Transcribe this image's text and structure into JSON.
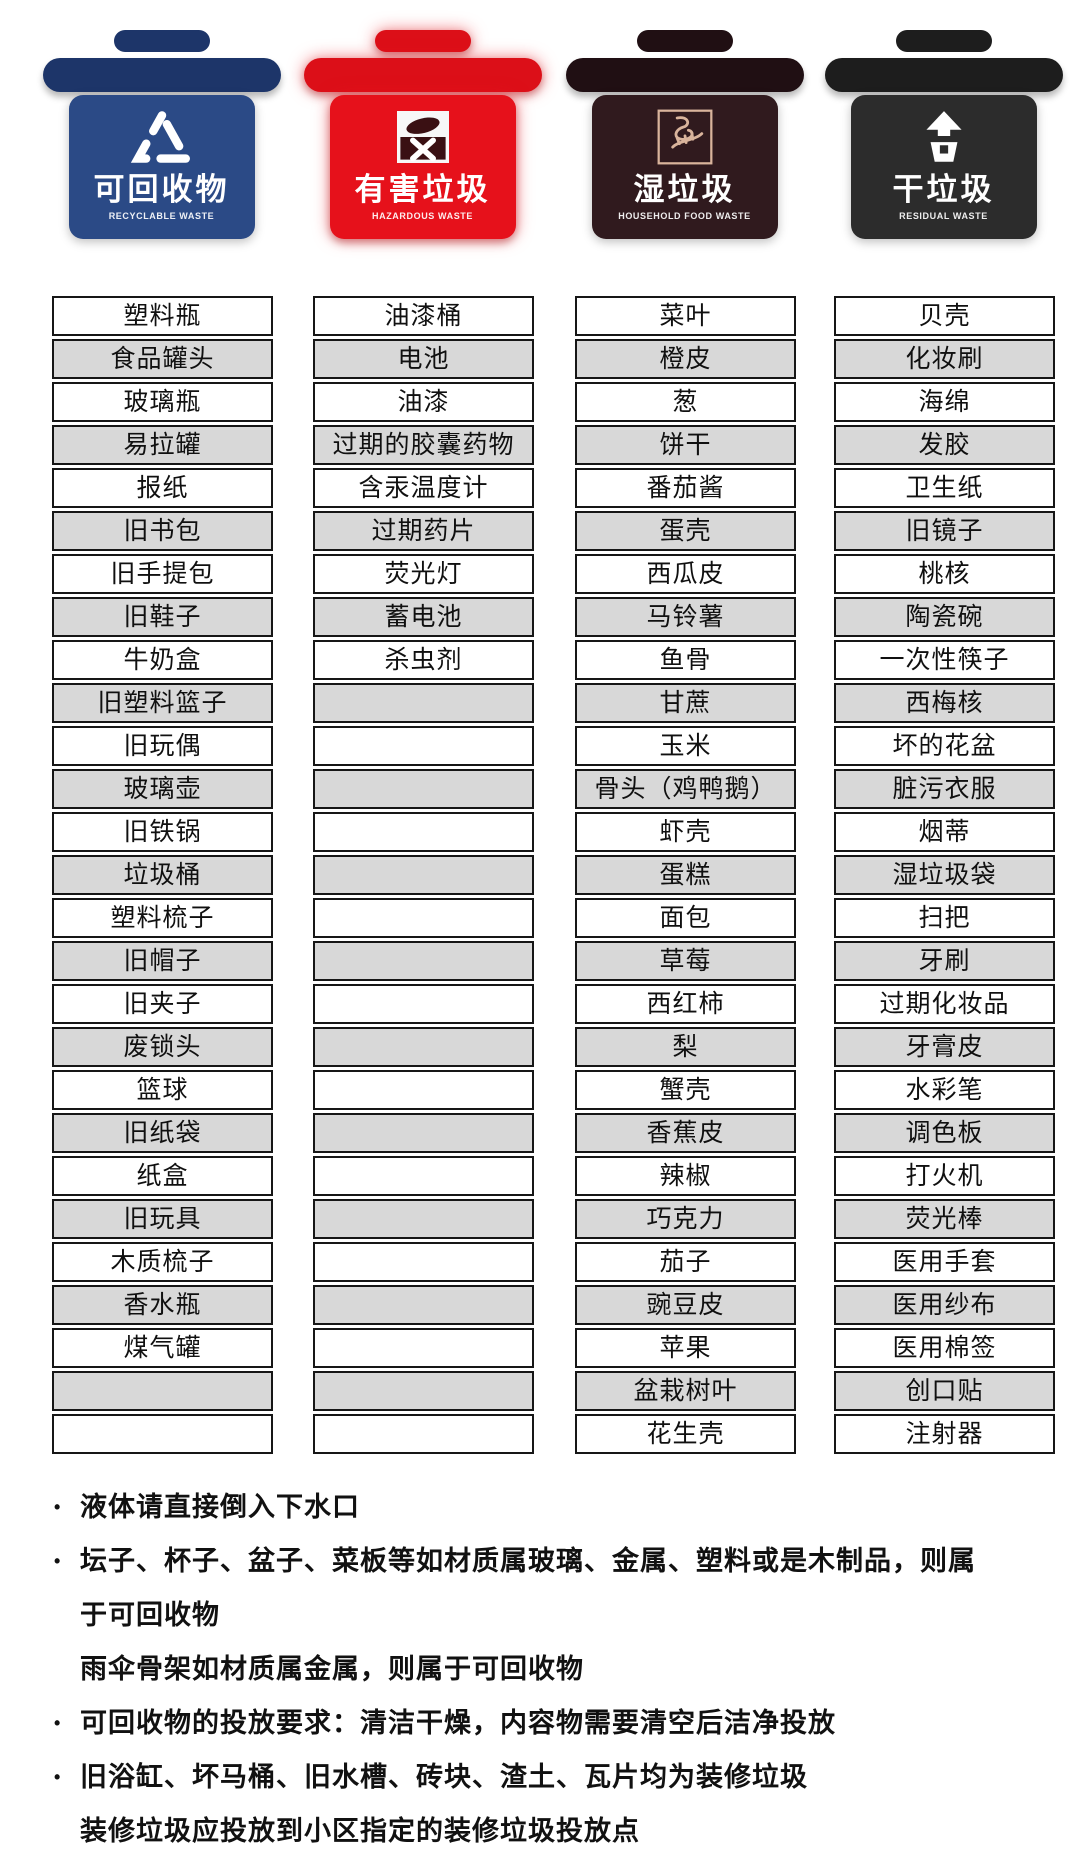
{
  "poster": {
    "bins": [
      {
        "title": "可回收物",
        "subtitle": "RECYCLABLE WASTE",
        "icon": "recycle",
        "body_color": "#2b4a86",
        "lid_color": "#1d3569",
        "text_color": "#ffffff"
      },
      {
        "title": "有害垃圾",
        "subtitle": "HAZARDOUS WASTE",
        "icon": "hazardous",
        "body_color": "#e6111b",
        "lid_color": "#dc0f18",
        "text_color": "#ffffff"
      },
      {
        "title": "湿垃圾",
        "subtitle": "HOUSEHOLD FOOD WASTE",
        "icon": "food-waste",
        "body_color": "#301a1e",
        "lid_color": "#200f13",
        "text_color": "#ffffff"
      },
      {
        "title": "干垃圾",
        "subtitle": "RESIDUAL WASTE",
        "icon": "residual",
        "body_color": "#2c2c2c",
        "lid_color": "#1d1d1d",
        "text_color": "#ffffff"
      }
    ],
    "row_count": 27,
    "columns": [
      {
        "category": "可回收物",
        "items": [
          "塑料瓶",
          "食品罐头",
          "玻璃瓶",
          "易拉罐",
          "报纸",
          "旧书包",
          "旧手提包",
          "旧鞋子",
          "牛奶盒",
          "旧塑料篮子",
          "旧玩偶",
          "玻璃壶",
          "旧铁锅",
          "垃圾桶",
          "塑料梳子",
          "旧帽子",
          "旧夹子",
          "废锁头",
          "篮球",
          "旧纸袋",
          "纸盒",
          "旧玩具",
          "木质梳子",
          "香水瓶",
          "煤气罐",
          "",
          ""
        ]
      },
      {
        "category": "有害垃圾",
        "items": [
          "油漆桶",
          "电池",
          "油漆",
          "过期的胶囊药物",
          "含汞温度计",
          "过期药片",
          "荧光灯",
          "蓄电池",
          "杀虫剂",
          "",
          "",
          "",
          "",
          "",
          "",
          "",
          "",
          "",
          "",
          "",
          "",
          "",
          "",
          "",
          "",
          "",
          ""
        ]
      },
      {
        "category": "湿垃圾",
        "items": [
          "菜叶",
          "橙皮",
          "葱",
          "饼干",
          "番茄酱",
          "蛋壳",
          "西瓜皮",
          "马铃薯",
          "鱼骨",
          "甘蔗",
          "玉米",
          "骨头（鸡鸭鹅）",
          "虾壳",
          "蛋糕",
          "面包",
          "草莓",
          "西红柿",
          "梨",
          "蟹壳",
          "香蕉皮",
          "辣椒",
          "巧克力",
          "茄子",
          "豌豆皮",
          "苹果",
          "盆栽树叶",
          "花生壳"
        ]
      },
      {
        "category": "干垃圾",
        "items": [
          "贝壳",
          "化妆刷",
          "海绵",
          "发胶",
          "卫生纸",
          "旧镜子",
          "桃核",
          "陶瓷碗",
          "一次性筷子",
          "西梅核",
          "坏的花盆",
          "脏污衣服",
          "烟蒂",
          "湿垃圾袋",
          "扫把",
          "牙刷",
          "过期化妆品",
          "牙膏皮",
          "水彩笔",
          "调色板",
          "打火机",
          "荧光棒",
          "医用手套",
          "医用纱布",
          "医用棉签",
          "创口贴",
          "注射器"
        ]
      }
    ],
    "notes": [
      {
        "bullet": true,
        "lines": [
          "液体请直接倒入下水口"
        ]
      },
      {
        "bullet": true,
        "lines": [
          "坛子、杯子、盆子、菜板等如材质属玻璃、金属、塑料或是木制品，则属",
          "于可回收物"
        ]
      },
      {
        "bullet": false,
        "lines": [
          "雨伞骨架如材质属金属，则属于可回收物"
        ]
      },
      {
        "bullet": true,
        "lines": [
          "可回收物的投放要求：清洁干燥，内容物需要清空后洁净投放"
        ]
      },
      {
        "bullet": true,
        "lines": [
          "旧浴缸、坏马桶、旧水槽、砖块、渣土、瓦片均为装修垃圾"
        ]
      },
      {
        "bullet": false,
        "lines": [
          "装修垃圾应投放到小区指定的装修垃圾投放点"
        ]
      }
    ],
    "colors": {
      "row_bg": "#ffffff",
      "row_alt": "#d8d8d8",
      "cell_border": "#161616"
    }
  }
}
